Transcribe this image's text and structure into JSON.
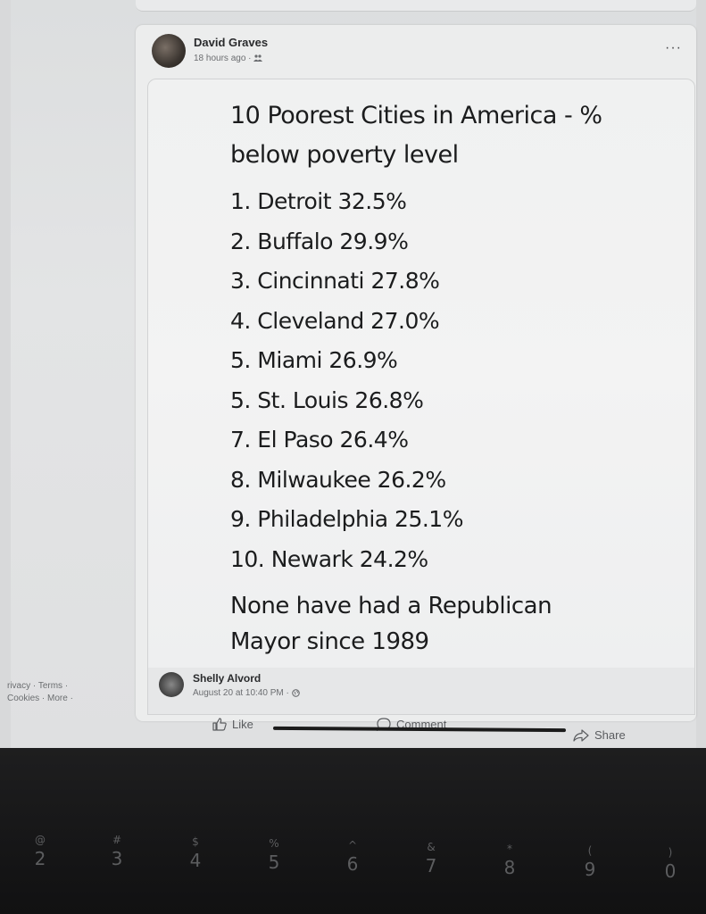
{
  "post": {
    "author": "David Graves",
    "timestamp": "18 hours ago",
    "audience_icon": "friends-icon",
    "more_icon": "more-options-icon"
  },
  "shared_post": {
    "headline_line1": "10 Poorest Cities in America - %",
    "headline_line2": "below poverty level",
    "cities": [
      "1. Detroit 32.5%",
      "2. Buffalo 29.9%",
      "3. Cincinnati 27.8%",
      "4. Cleveland 27.0%",
      "5. Miami 26.9%",
      "5. St. Louis 26.8%",
      "7. El Paso 26.4%",
      "8. Milwaukee 26.2%",
      "9. Philadelphia 25.1%",
      "10. Newark 24.2%"
    ],
    "footnote_line1": "None have had a Republican",
    "footnote_line2": "Mayor since 1989",
    "author": "Shelly Alvord",
    "timestamp": "August 20 at 10:40 PM"
  },
  "actions": {
    "like": "Like",
    "comment": "Comment",
    "share": "Share"
  },
  "footer_links": {
    "line1": "rivacy · Terms ·",
    "line2": "Cookies · More ·"
  },
  "keyboard": [
    {
      "shift": "@",
      "main": "2"
    },
    {
      "shift": "#",
      "main": "3"
    },
    {
      "shift": "$",
      "main": "4"
    },
    {
      "shift": "%",
      "main": "5"
    },
    {
      "shift": "^",
      "main": "6"
    },
    {
      "shift": "&",
      "main": "7"
    },
    {
      "shift": "*",
      "main": "8"
    },
    {
      "shift": "(",
      "main": "9"
    },
    {
      "shift": ")",
      "main": "0"
    }
  ]
}
